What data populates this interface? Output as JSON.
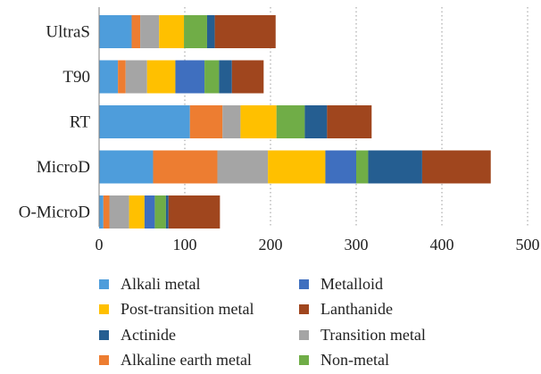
{
  "chart_data": {
    "type": "bar",
    "orientation": "horizontal",
    "stacked": true,
    "categories": [
      "UltraS",
      "T90",
      "RT",
      "MicroD",
      "O-MicroD"
    ],
    "xlim": [
      0,
      500
    ],
    "x_ticks": [
      "0",
      "100",
      "200",
      "300",
      "400",
      "500"
    ],
    "grid": "vertical dotted",
    "legend_position": "bottom",
    "series": [
      {
        "name": "Alkali metal",
        "color": "#4E9DDB",
        "values": [
          38,
          22,
          106,
          63,
          5
        ]
      },
      {
        "name": "Alkaline earth metal",
        "color": "#ED7D31",
        "values": [
          10,
          9,
          38,
          75,
          7
        ]
      },
      {
        "name": "Transition metal",
        "color": "#A5A5A5",
        "values": [
          22,
          25,
          21,
          59,
          23
        ]
      },
      {
        "name": "Post-transition metal",
        "color": "#FFC000",
        "values": [
          29,
          33,
          42,
          67,
          18
        ]
      },
      {
        "name": "Metalloid",
        "color": "#3F6FBF",
        "values": [
          0,
          34,
          0,
          36,
          12
        ]
      },
      {
        "name": "Non-metal",
        "color": "#70AD47",
        "values": [
          27,
          17,
          33,
          14,
          13
        ]
      },
      {
        "name": "Actinide",
        "color": "#255E91",
        "values": [
          9,
          15,
          26,
          63,
          3
        ]
      },
      {
        "name": "Lanthanide",
        "color": "#A0461E",
        "values": [
          71,
          37,
          52,
          80,
          60
        ]
      }
    ],
    "legend_order": [
      "Alkali metal",
      "Metalloid",
      "Post-transition metal",
      "Lanthanide",
      "Actinide",
      "Transition metal",
      "Alkaline earth metal",
      "Non-metal"
    ]
  }
}
